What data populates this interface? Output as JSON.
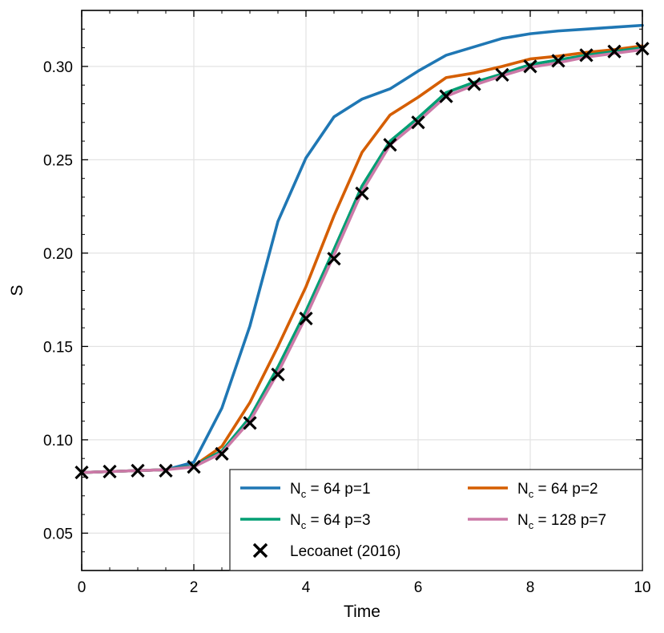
{
  "chart_data": {
    "type": "line",
    "title": "",
    "xlabel": "Time",
    "ylabel": "S",
    "xlim": [
      0,
      10
    ],
    "ylim": [
      0.03,
      0.33
    ],
    "xticks": [
      0,
      2,
      4,
      6,
      8,
      10
    ],
    "xtick_labels": [
      "0",
      "2",
      "4",
      "6",
      "8",
      "10"
    ],
    "yticks": [
      0.05,
      0.1,
      0.15,
      0.2,
      0.25,
      0.3
    ],
    "ytick_labels": [
      "0.05",
      "0.10",
      "0.15",
      "0.20",
      "0.25",
      "0.30"
    ],
    "grid": true,
    "legend_position": "bottom-right",
    "series": [
      {
        "name": "N_c = 64 p=1",
        "legend_main": "N",
        "legend_sub": "c",
        "legend_rest": " = 64 p=1",
        "color": "#1f77b4",
        "x": [
          0,
          0.5,
          1,
          1.5,
          2,
          2.5,
          3,
          3.5,
          4,
          4.5,
          5,
          5.5,
          6,
          6.5,
          7,
          7.5,
          8,
          8.5,
          9,
          9.5,
          10
        ],
        "y": [
          0.0825,
          0.083,
          0.0835,
          0.084,
          0.088,
          0.117,
          0.161,
          0.217,
          0.251,
          0.273,
          0.2825,
          0.288,
          0.2975,
          0.306,
          0.3105,
          0.315,
          0.3175,
          0.319,
          0.32,
          0.321,
          0.322
        ]
      },
      {
        "name": "N_c = 64 p=2",
        "legend_main": "N",
        "legend_sub": "c",
        "legend_rest": " = 64 p=2",
        "color": "#d55e00",
        "x": [
          0,
          0.5,
          1,
          1.5,
          2,
          2.5,
          3,
          3.5,
          4,
          4.5,
          5,
          5.5,
          6,
          6.5,
          7,
          7.5,
          8,
          8.5,
          9,
          9.5,
          10
        ],
        "y": [
          0.0825,
          0.083,
          0.0835,
          0.084,
          0.086,
          0.0965,
          0.12,
          0.15,
          0.182,
          0.22,
          0.254,
          0.274,
          0.2835,
          0.294,
          0.2965,
          0.3,
          0.304,
          0.3055,
          0.3075,
          0.309,
          0.311
        ]
      },
      {
        "name": "N_c = 64 p=3",
        "legend_main": "N",
        "legend_sub": "c",
        "legend_rest": " = 64 p=3",
        "color": "#009e73",
        "x": [
          0,
          0.5,
          1,
          1.5,
          2,
          2.5,
          3,
          3.5,
          4,
          4.5,
          5,
          5.5,
          6,
          6.5,
          7,
          7.5,
          8,
          8.5,
          9,
          9.5,
          10
        ],
        "y": [
          0.0825,
          0.083,
          0.0835,
          0.084,
          0.086,
          0.094,
          0.112,
          0.139,
          0.169,
          0.202,
          0.236,
          0.26,
          0.2725,
          0.286,
          0.2915,
          0.296,
          0.301,
          0.3035,
          0.306,
          0.308,
          0.31
        ]
      },
      {
        "name": "N_c = 128 p=7",
        "legend_main": "N",
        "legend_sub": "c",
        "legend_rest": " = 128 p=7",
        "color": "#cc79a7",
        "x": [
          0,
          0.5,
          1,
          1.5,
          2,
          2.5,
          3,
          3.5,
          4,
          4.5,
          5,
          5.5,
          6,
          6.5,
          7,
          7.5,
          8,
          8.5,
          9,
          9.5,
          10
        ],
        "y": [
          0.0825,
          0.083,
          0.0835,
          0.084,
          0.0855,
          0.093,
          0.11,
          0.136,
          0.166,
          0.199,
          0.233,
          0.258,
          0.2705,
          0.284,
          0.29,
          0.295,
          0.2995,
          0.302,
          0.305,
          0.307,
          0.309
        ]
      }
    ],
    "reference": {
      "name": "Lecoanet (2016)",
      "label": "Lecoanet (2016)",
      "marker": "x",
      "color": "#000000",
      "x": [
        0,
        0.5,
        1,
        1.5,
        2,
        2.5,
        3,
        3.5,
        4,
        4.5,
        5,
        5.5,
        6,
        6.5,
        7,
        7.5,
        8,
        8.5,
        9,
        9.5,
        10
      ],
      "y": [
        0.0825,
        0.083,
        0.0835,
        0.0835,
        0.0855,
        0.0925,
        0.109,
        0.135,
        0.165,
        0.197,
        0.232,
        0.258,
        0.27,
        0.284,
        0.2905,
        0.2955,
        0.3,
        0.303,
        0.306,
        0.308,
        0.3095
      ]
    }
  }
}
